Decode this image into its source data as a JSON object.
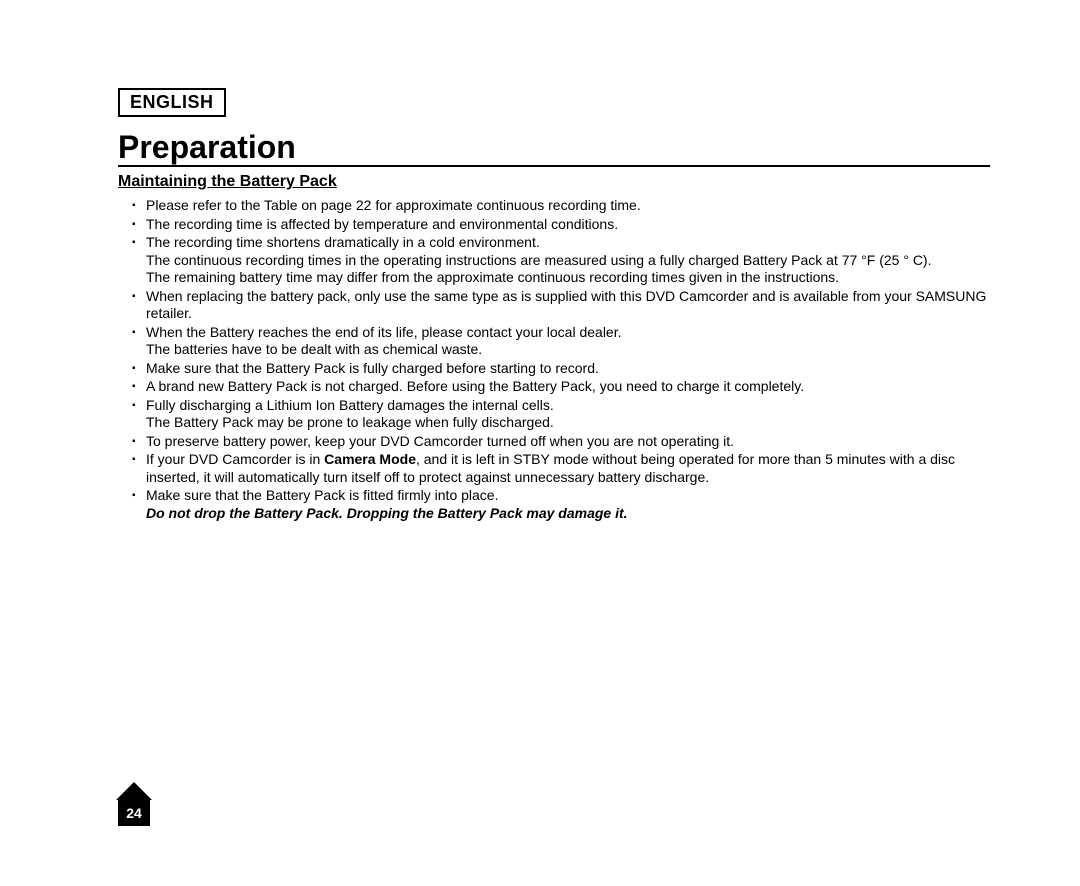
{
  "language_label": "ENGLISH",
  "title": "Preparation",
  "section_heading": "Maintaining the Battery Pack",
  "bullets": [
    {
      "main": "Please refer to the Table on page 22 for approximate continuous recording time."
    },
    {
      "main": "The recording time is affected by temperature and environmental conditions."
    },
    {
      "main": "The recording time shortens dramatically in a cold environment.",
      "sub1": "The continuous recording times in the operating instructions are measured using a fully charged Battery Pack at 77 °F (25 ° C).",
      "sub2": "The remaining battery time may differ from the approximate continuous recording times given in the instructions."
    },
    {
      "main": "When replacing the battery pack, only use the same type as is supplied with this DVD Camcorder and is available from your SAMSUNG retailer."
    },
    {
      "main": "When the Battery reaches the end of its life, please contact your local dealer.",
      "sub1": "The batteries have to be dealt with as chemical waste."
    },
    {
      "main": "Make sure that the Battery Pack is fully charged before starting to record."
    },
    {
      "main": "A brand new Battery Pack is not charged. Before using the Battery Pack, you need to charge it completely."
    },
    {
      "main": "Fully discharging a Lithium Ion Battery damages the internal cells.",
      "sub1": "The Battery Pack may be prone to leakage when fully discharged."
    },
    {
      "main": "To preserve battery power, keep your DVD Camcorder turned off when you are not operating it."
    },
    {
      "pre": "If your DVD Camcorder is in ",
      "bold": "Camera Mode",
      "post": ", and it is left in STBY mode without being operated for more than 5 minutes with a disc inserted, it will automatically turn itself off to protect against unnecessary battery discharge."
    },
    {
      "main": "Make sure that the Battery Pack is fitted firmly into place.",
      "warn": "Do not drop the Battery Pack. Dropping the Battery Pack may damage it."
    }
  ],
  "page_number": "24",
  "colors": {
    "text": "#000000",
    "bg": "#ffffff",
    "pagebox_bg": "#000000",
    "pagebox_fg": "#ffffff"
  },
  "fonts": {
    "title_size_pt": 24,
    "heading_size_pt": 12,
    "body_size_pt": 10.5,
    "lang_size_pt": 13
  }
}
